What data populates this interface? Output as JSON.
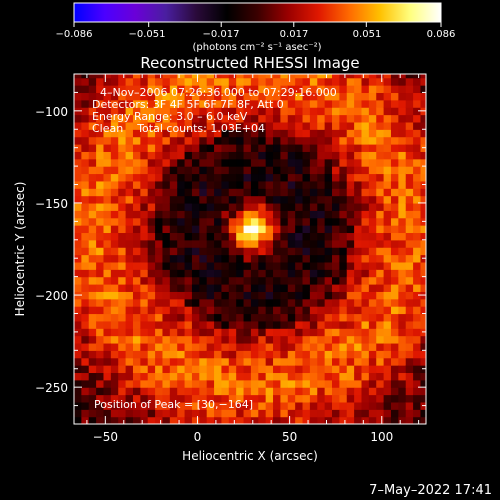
{
  "colorbar": {
    "tick_labels": [
      "−0.086",
      "−0.051",
      "−0.017",
      "0.017",
      "0.051",
      "0.086"
    ],
    "ticks": [
      -0.086,
      -0.051,
      -0.017,
      0.017,
      0.051,
      0.086
    ],
    "range": [
      -0.086,
      0.086
    ],
    "units_label": "(photons cm⁻² s⁻¹ asec⁻²)",
    "colors": [
      "#0000ff",
      "#4b00ff",
      "#6a00d8",
      "#4a1ea0",
      "#2a0a3a",
      "#000000",
      "#3b0000",
      "#9a0000",
      "#e01800",
      "#ff6a00",
      "#ffc000",
      "#ffff80",
      "#ffffff"
    ]
  },
  "chart_data": {
    "type": "heatmap",
    "title": "Reconstructed RHESSI Image",
    "xlabel": "Heliocentric X (arcsec)",
    "ylabel": "Heliocentric Y (arcsec)",
    "x_ticks": [
      -50,
      0,
      50,
      100
    ],
    "x_tick_labels": [
      "−50",
      "0",
      "50",
      "100"
    ],
    "y_ticks": [
      -100,
      -150,
      -200,
      -250
    ],
    "y_tick_labels": [
      "−100",
      "−150",
      "−200",
      "−250"
    ],
    "xlim": [
      -67,
      124
    ],
    "ylim": [
      -270,
      -80
    ],
    "annotations": [
      "4–Nov–2006 07:26:36.000 to 07:29:16.000",
      "Detectors: 3F 4F 5F 6F 7F 8F, Att 0",
      "Energy Range: 3.0 – 6.0 keV",
      "Clean    Total counts: 1.03E+04"
    ],
    "peak_label": "Position of Peak = [30,−164]",
    "peak": [
      30,
      -164
    ],
    "structure": {
      "core_center": [
        30,
        -164
      ],
      "core_peak_value": 0.086,
      "ring_radius_arcsec": 85,
      "ring_value": 0.04,
      "background_value": -0.02
    }
  },
  "footer": {
    "timestamp": "7–May–2022 17:41"
  }
}
